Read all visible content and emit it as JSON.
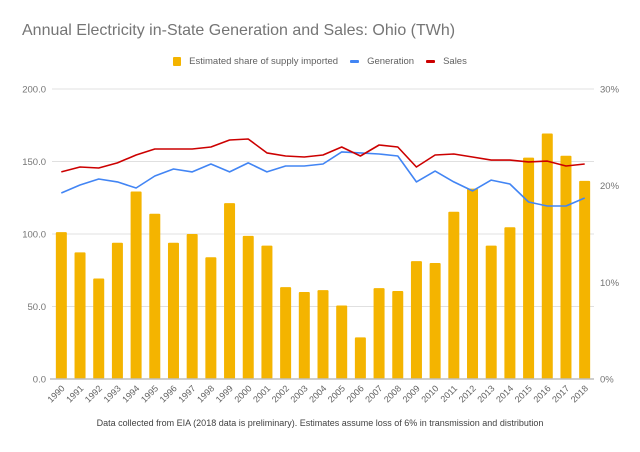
{
  "chart_data": {
    "type": "bar",
    "title": "Annual Electricity in-State Generation and Sales: Ohio (TWh)",
    "footnote": "Data collected from EIA (2018 data is preliminary). Estimates assume loss of 6% in transmission and distribution",
    "xlabel": "",
    "ylabel": "",
    "legend_position": "top",
    "grid": true,
    "categories": [
      "1990",
      "1991",
      "1992",
      "1993",
      "1994",
      "1995",
      "1996",
      "1997",
      "1998",
      "1999",
      "2000",
      "2001",
      "2002",
      "2003",
      "2004",
      "2005",
      "2006",
      "2007",
      "2008",
      "2009",
      "2010",
      "2011",
      "2012",
      "2013",
      "2014",
      "2015",
      "2016",
      "2017",
      "2018"
    ],
    "left_axis": {
      "ylim": [
        0,
        200
      ],
      "ticks": [
        "0.0",
        "50.0",
        "100.0",
        "150.0",
        "200.0"
      ],
      "tick_values": [
        0,
        50,
        100,
        150,
        200
      ]
    },
    "right_axis": {
      "ylim": [
        0,
        30
      ],
      "ticks": [
        "0%",
        "10%",
        "20%",
        "30%"
      ],
      "tick_values": [
        0,
        10,
        20,
        30
      ]
    },
    "series": [
      {
        "name": "Estimated share of supply imported",
        "type": "bar",
        "axis": "right",
        "unit": "%",
        "color": "#F4B400",
        "values": [
          15.2,
          13.1,
          10.4,
          14.1,
          19.4,
          17.1,
          14.1,
          15.0,
          12.6,
          18.2,
          14.8,
          13.8,
          9.5,
          9.0,
          9.2,
          7.6,
          4.3,
          9.4,
          9.1,
          12.2,
          12.0,
          17.3,
          19.7,
          13.8,
          15.7,
          22.9,
          25.4,
          23.1,
          20.5
        ]
      },
      {
        "name": "Generation",
        "type": "line",
        "axis": "left",
        "unit": "TWh",
        "color": "#4285F4",
        "values": [
          128.3,
          133.8,
          137.9,
          135.9,
          131.7,
          140.0,
          144.8,
          142.8,
          148.3,
          142.8,
          149.0,
          142.8,
          146.9,
          146.9,
          148.3,
          156.6,
          155.9,
          155.2,
          153.8,
          135.9,
          143.4,
          135.9,
          129.7,
          137.2,
          134.5,
          122.1,
          119.3,
          119.3,
          124.8
        ]
      },
      {
        "name": "Sales",
        "type": "line",
        "axis": "left",
        "unit": "TWh",
        "color": "#CC0000",
        "values": [
          142.8,
          146.2,
          145.5,
          149.0,
          154.5,
          158.6,
          158.6,
          158.6,
          160.0,
          164.8,
          165.5,
          155.9,
          153.8,
          153.1,
          154.5,
          160.0,
          153.8,
          161.4,
          160.0,
          146.2,
          154.5,
          155.2,
          153.1,
          151.0,
          151.0,
          149.7,
          150.3,
          146.9,
          148.3
        ]
      }
    ]
  }
}
